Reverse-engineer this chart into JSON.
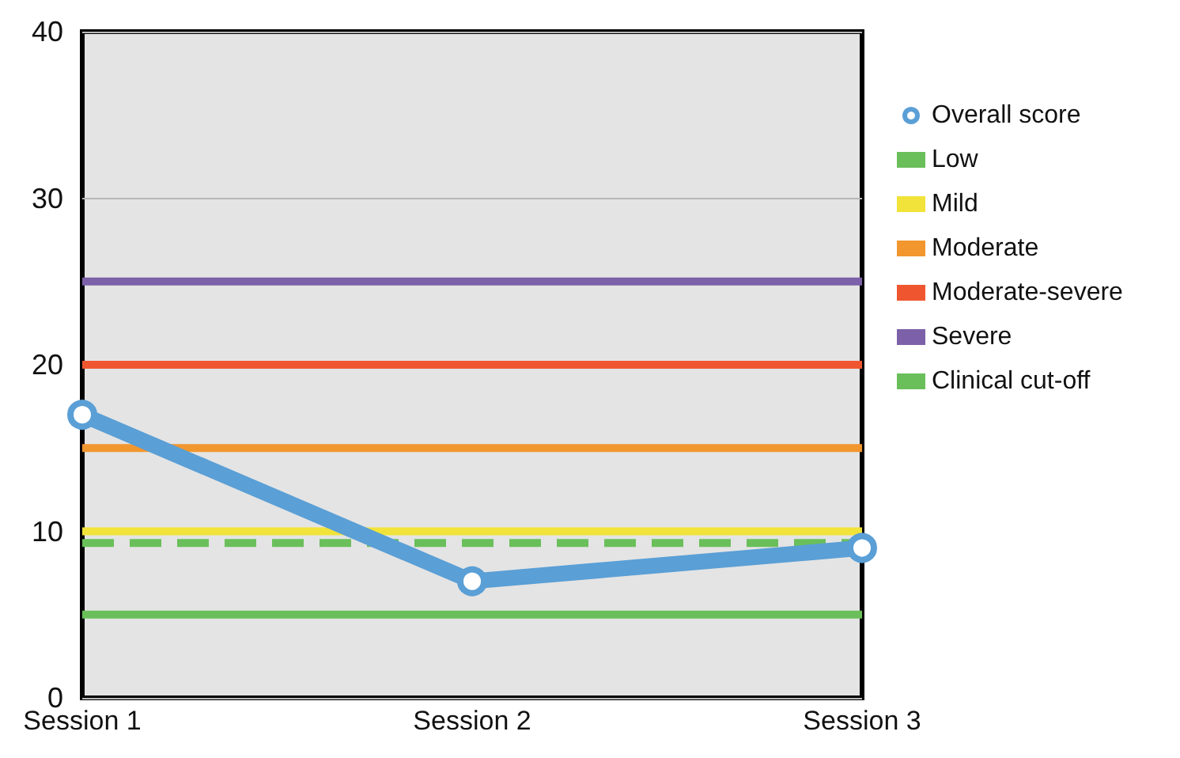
{
  "chart_data": {
    "type": "line",
    "categories": [
      "Session 1",
      "Session 2",
      "Session 3"
    ],
    "ylim": [
      0,
      40
    ],
    "yticks": [
      0,
      10,
      20,
      30,
      40
    ],
    "grid": "y",
    "legend": "right",
    "series": [
      {
        "name": "Overall score",
        "color": "#5a9fd6",
        "values": [
          17,
          7,
          9
        ],
        "marker": "circle"
      },
      {
        "name": "Low",
        "color": "#6abf5a",
        "values": [
          5,
          5,
          5
        ],
        "marker": "none"
      },
      {
        "name": "Mild",
        "color": "#f2e33a",
        "values": [
          10,
          10,
          10
        ],
        "marker": "none"
      },
      {
        "name": "Moderate",
        "color": "#f2962e",
        "values": [
          15,
          15,
          15
        ],
        "marker": "none"
      },
      {
        "name": "Moderate-severe",
        "color": "#ef5630",
        "values": [
          20,
          20,
          20
        ],
        "marker": "none"
      },
      {
        "name": "Severe",
        "color": "#7c60a8",
        "values": [
          25,
          25,
          25
        ],
        "marker": "none"
      },
      {
        "name": "Clinical cut-off",
        "color": "#6abf5a",
        "values": [
          9.3,
          9.3,
          9.3
        ],
        "marker": "none",
        "line_style": "dashed"
      }
    ]
  }
}
